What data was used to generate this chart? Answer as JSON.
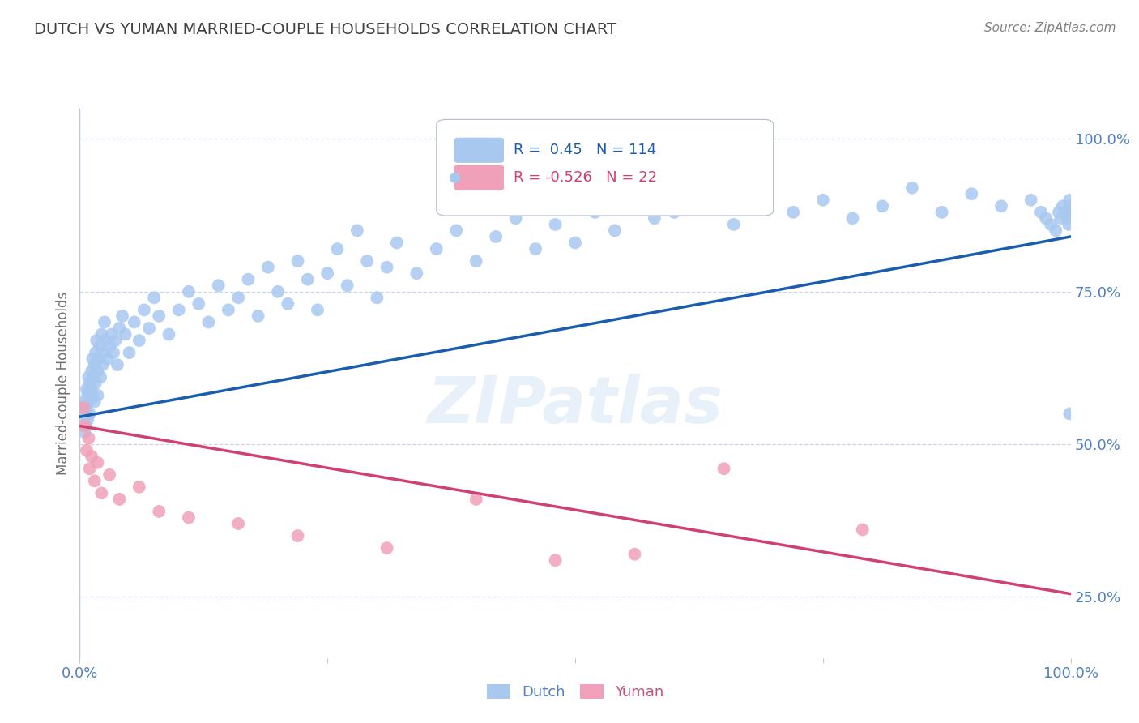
{
  "title": "DUTCH VS YUMAN MARRIED-COUPLE HOUSEHOLDS CORRELATION CHART",
  "source": "Source: ZipAtlas.com",
  "ylabel": "Married-couple Households",
  "xlim": [
    0.0,
    1.0
  ],
  "ylim": [
    0.15,
    1.05
  ],
  "ytick_positions": [
    0.25,
    0.5,
    0.75,
    1.0
  ],
  "ytick_labels": [
    "25.0%",
    "50.0%",
    "75.0%",
    "100.0%"
  ],
  "xtick_positions": [
    0.0,
    0.25,
    0.5,
    0.75,
    1.0
  ],
  "xtick_labels": [
    "0.0%",
    "",
    "",
    "",
    "100.0%"
  ],
  "dutch_R": 0.45,
  "dutch_N": 114,
  "yuman_R": -0.526,
  "yuman_N": 22,
  "dutch_color": "#a8c8f0",
  "yuman_color": "#f0a0b8",
  "dutch_line_color": "#1a5cb0",
  "yuman_line_color": "#d04070",
  "watermark": "ZIPatlas",
  "dutch_x": [
    0.003,
    0.004,
    0.005,
    0.005,
    0.006,
    0.006,
    0.007,
    0.007,
    0.008,
    0.008,
    0.009,
    0.009,
    0.01,
    0.01,
    0.011,
    0.012,
    0.013,
    0.013,
    0.014,
    0.015,
    0.015,
    0.016,
    0.016,
    0.017,
    0.018,
    0.018,
    0.019,
    0.02,
    0.021,
    0.022,
    0.023,
    0.024,
    0.025,
    0.026,
    0.028,
    0.03,
    0.032,
    0.034,
    0.036,
    0.038,
    0.04,
    0.043,
    0.046,
    0.05,
    0.055,
    0.06,
    0.065,
    0.07,
    0.075,
    0.08,
    0.09,
    0.1,
    0.11,
    0.12,
    0.13,
    0.14,
    0.15,
    0.16,
    0.17,
    0.18,
    0.19,
    0.2,
    0.21,
    0.22,
    0.23,
    0.24,
    0.25,
    0.26,
    0.27,
    0.28,
    0.29,
    0.3,
    0.31,
    0.32,
    0.34,
    0.36,
    0.38,
    0.4,
    0.42,
    0.44,
    0.46,
    0.48,
    0.5,
    0.52,
    0.54,
    0.56,
    0.58,
    0.6,
    0.63,
    0.66,
    0.69,
    0.72,
    0.75,
    0.78,
    0.81,
    0.84,
    0.87,
    0.9,
    0.93,
    0.96,
    0.97,
    0.975,
    0.98,
    0.985,
    0.988,
    0.99,
    0.992,
    0.995,
    0.997,
    0.998,
    0.999,
    0.999,
    0.999,
    0.999
  ],
  "dutch_y": [
    0.56,
    0.54,
    0.57,
    0.52,
    0.55,
    0.53,
    0.59,
    0.56,
    0.58,
    0.54,
    0.61,
    0.57,
    0.55,
    0.6,
    0.59,
    0.62,
    0.58,
    0.64,
    0.61,
    0.63,
    0.57,
    0.65,
    0.6,
    0.67,
    0.62,
    0.58,
    0.64,
    0.66,
    0.61,
    0.68,
    0.63,
    0.65,
    0.7,
    0.67,
    0.64,
    0.66,
    0.68,
    0.65,
    0.67,
    0.63,
    0.69,
    0.71,
    0.68,
    0.65,
    0.7,
    0.67,
    0.72,
    0.69,
    0.74,
    0.71,
    0.68,
    0.72,
    0.75,
    0.73,
    0.7,
    0.76,
    0.72,
    0.74,
    0.77,
    0.71,
    0.79,
    0.75,
    0.73,
    0.8,
    0.77,
    0.72,
    0.78,
    0.82,
    0.76,
    0.85,
    0.8,
    0.74,
    0.79,
    0.83,
    0.78,
    0.82,
    0.85,
    0.8,
    0.84,
    0.87,
    0.82,
    0.86,
    0.83,
    0.88,
    0.85,
    0.9,
    0.87,
    0.88,
    0.89,
    0.86,
    0.91,
    0.88,
    0.9,
    0.87,
    0.89,
    0.92,
    0.88,
    0.91,
    0.89,
    0.9,
    0.88,
    0.87,
    0.86,
    0.85,
    0.88,
    0.87,
    0.89,
    0.88,
    0.87,
    0.86,
    0.89,
    0.88,
    0.9,
    0.55
  ],
  "yuman_x": [
    0.004,
    0.005,
    0.007,
    0.009,
    0.01,
    0.012,
    0.015,
    0.018,
    0.022,
    0.03,
    0.04,
    0.06,
    0.08,
    0.11,
    0.16,
    0.22,
    0.31,
    0.4,
    0.48,
    0.56,
    0.65,
    0.79
  ],
  "yuman_y": [
    0.56,
    0.53,
    0.49,
    0.51,
    0.46,
    0.48,
    0.44,
    0.47,
    0.42,
    0.45,
    0.41,
    0.43,
    0.39,
    0.38,
    0.37,
    0.35,
    0.33,
    0.41,
    0.31,
    0.32,
    0.46,
    0.36
  ],
  "dutch_trend_x": [
    0.0,
    1.0
  ],
  "dutch_trend_y": [
    0.545,
    0.84
  ],
  "yuman_trend_x": [
    0.0,
    1.0
  ],
  "yuman_trend_y": [
    0.53,
    0.255
  ],
  "background_color": "#ffffff",
  "grid_color": "#c8d4e8",
  "title_color": "#404040",
  "tick_label_color": "#5080c0",
  "ylabel_color": "#707070"
}
